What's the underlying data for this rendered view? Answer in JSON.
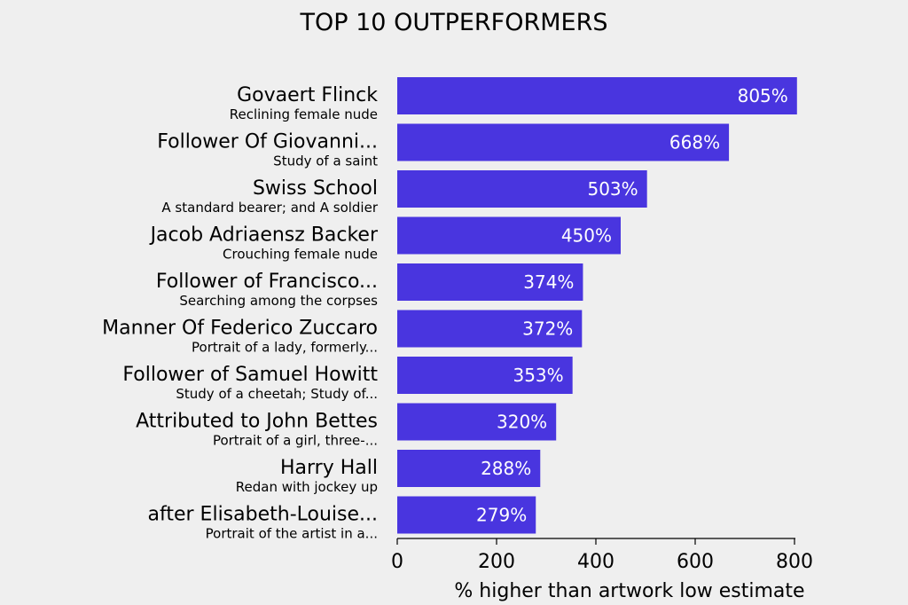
{
  "chart_data": {
    "type": "bar",
    "orientation": "horizontal",
    "title": "TOP 10 OUTPERFORMERS",
    "xlabel": "% higher than artwork low estimate",
    "ylabel": "",
    "xlim": [
      0,
      800
    ],
    "xticks": [
      "0",
      "200",
      "400",
      "600",
      "800"
    ],
    "grid": false,
    "bar_color": "#4935df",
    "categories": [
      {
        "artist": "Govaert Flinck",
        "work": "Reclining female nude"
      },
      {
        "artist": "Follower Of Giovanni...",
        "work": "Study of a saint"
      },
      {
        "artist": "Swiss School",
        "work": "A standard bearer; and A soldier"
      },
      {
        "artist": "Jacob Adriaensz Backer",
        "work": "Crouching female nude"
      },
      {
        "artist": "Follower of Francisco...",
        "work": "Searching among the corpses"
      },
      {
        "artist": "Manner Of Federico Zuccaro",
        "work": "Portrait of a lady, formerly..."
      },
      {
        "artist": "Follower of Samuel Howitt",
        "work": "Study of a cheetah; Study of..."
      },
      {
        "artist": "Attributed to John Bettes",
        "work": "Portrait of a girl, three-..."
      },
      {
        "artist": "Harry Hall",
        "work": "Redan with jockey up"
      },
      {
        "artist": "after Elisabeth-Louise...",
        "work": "Portrait of the artist in a..."
      }
    ],
    "values": [
      805,
      668,
      503,
      450,
      374,
      372,
      353,
      320,
      288,
      279
    ],
    "value_labels": [
      "805%",
      "668%",
      "503%",
      "450%",
      "374%",
      "372%",
      "353%",
      "320%",
      "288%",
      "279%"
    ]
  }
}
